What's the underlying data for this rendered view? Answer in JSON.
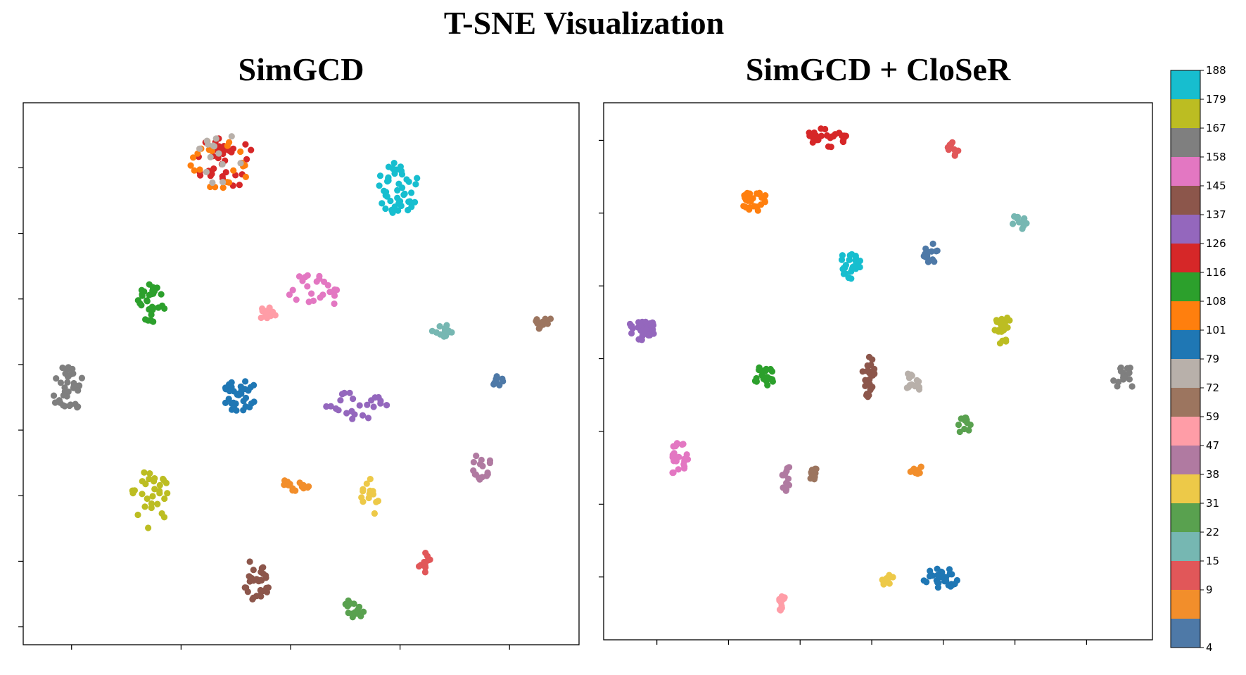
{
  "title": "T-SNE Visualization",
  "chart_data": [
    {
      "type": "scatter",
      "title": "SimGCD",
      "xlabel": "",
      "ylabel": "",
      "clusters": [
        {
          "class": 126,
          "color": "#d62728",
          "cx": 0.365,
          "cy": 0.11,
          "rx": 0.055,
          "ry": 0.05,
          "n": 34
        },
        {
          "class": 108,
          "color": "#ff7f0e",
          "cx": 0.355,
          "cy": 0.112,
          "rx": 0.055,
          "ry": 0.05,
          "n": 22
        },
        {
          "class": 79,
          "color": "#b8b0aa",
          "cx": 0.36,
          "cy": 0.11,
          "rx": 0.055,
          "ry": 0.05,
          "n": 14
        },
        {
          "class": 188,
          "color": "#17becf",
          "cx": 0.675,
          "cy": 0.158,
          "rx": 0.038,
          "ry": 0.048,
          "n": 46
        },
        {
          "class": 116,
          "color": "#2ca02c",
          "cx": 0.23,
          "cy": 0.37,
          "rx": 0.025,
          "ry": 0.036,
          "n": 30
        },
        {
          "class": 158,
          "color": "#e377c2",
          "cx": 0.52,
          "cy": 0.35,
          "rx": 0.05,
          "ry": 0.035,
          "n": 24
        },
        {
          "class": 59,
          "color": "#ff9da7",
          "cx": 0.44,
          "cy": 0.39,
          "rx": 0.015,
          "ry": 0.014,
          "n": 14
        },
        {
          "class": 22,
          "color": "#76b7b2",
          "cx": 0.755,
          "cy": 0.42,
          "rx": 0.02,
          "ry": 0.013,
          "n": 14
        },
        {
          "class": 72,
          "color": "#9c755f",
          "cx": 0.937,
          "cy": 0.405,
          "rx": 0.015,
          "ry": 0.015,
          "n": 12
        },
        {
          "class": 167,
          "color": "#7f7f7f",
          "cx": 0.08,
          "cy": 0.53,
          "rx": 0.03,
          "ry": 0.045,
          "n": 36
        },
        {
          "class": 101,
          "color": "#1f77b4",
          "cx": 0.39,
          "cy": 0.54,
          "rx": 0.032,
          "ry": 0.03,
          "n": 34
        },
        {
          "class": 137,
          "color": "#9467bd",
          "cx": 0.6,
          "cy": 0.56,
          "rx": 0.055,
          "ry": 0.03,
          "n": 24
        },
        {
          "class": 4,
          "color": "#4e79a7",
          "cx": 0.855,
          "cy": 0.515,
          "rx": 0.01,
          "ry": 0.011,
          "n": 8
        },
        {
          "class": 47,
          "color": "#b07aa1",
          "cx": 0.822,
          "cy": 0.673,
          "rx": 0.022,
          "ry": 0.025,
          "n": 16
        },
        {
          "class": 179,
          "color": "#bcbd22",
          "cx": 0.23,
          "cy": 0.73,
          "rx": 0.035,
          "ry": 0.06,
          "n": 30
        },
        {
          "class": 9,
          "color": "#f28e2b",
          "cx": 0.49,
          "cy": 0.705,
          "rx": 0.025,
          "ry": 0.014,
          "n": 16
        },
        {
          "class": 38,
          "color": "#edc948",
          "cx": 0.625,
          "cy": 0.73,
          "rx": 0.018,
          "ry": 0.038,
          "n": 14
        },
        {
          "class": 145,
          "color": "#8c564b",
          "cx": 0.42,
          "cy": 0.88,
          "rx": 0.027,
          "ry": 0.04,
          "n": 30
        },
        {
          "class": 15,
          "color": "#e15759",
          "cx": 0.722,
          "cy": 0.85,
          "rx": 0.012,
          "ry": 0.02,
          "n": 10
        },
        {
          "class": 31,
          "color": "#59a14f",
          "cx": 0.595,
          "cy": 0.935,
          "rx": 0.02,
          "ry": 0.02,
          "n": 16
        }
      ]
    },
    {
      "type": "scatter",
      "title": "SimGCD + CloSeR",
      "xlabel": "",
      "ylabel": "",
      "clusters": [
        {
          "class": 126,
          "color": "#d62728",
          "cx": 0.405,
          "cy": 0.065,
          "rx": 0.038,
          "ry": 0.018,
          "n": 28
        },
        {
          "class": 15,
          "color": "#e15759",
          "cx": 0.637,
          "cy": 0.085,
          "rx": 0.012,
          "ry": 0.014,
          "n": 10
        },
        {
          "class": 108,
          "color": "#ff7f0e",
          "cx": 0.275,
          "cy": 0.182,
          "rx": 0.025,
          "ry": 0.02,
          "n": 26
        },
        {
          "class": 22,
          "color": "#76b7b2",
          "cx": 0.757,
          "cy": 0.222,
          "rx": 0.015,
          "ry": 0.015,
          "n": 12
        },
        {
          "class": 188,
          "color": "#17becf",
          "cx": 0.45,
          "cy": 0.3,
          "rx": 0.018,
          "ry": 0.03,
          "n": 26
        },
        {
          "class": 4,
          "color": "#4e79a7",
          "cx": 0.595,
          "cy": 0.28,
          "rx": 0.015,
          "ry": 0.02,
          "n": 14
        },
        {
          "class": 137,
          "color": "#9467bd",
          "cx": 0.07,
          "cy": 0.42,
          "rx": 0.025,
          "ry": 0.022,
          "n": 34
        },
        {
          "class": 179,
          "color": "#bcbd22",
          "cx": 0.728,
          "cy": 0.425,
          "rx": 0.018,
          "ry": 0.028,
          "n": 20
        },
        {
          "class": 116,
          "color": "#2ca02c",
          "cx": 0.29,
          "cy": 0.51,
          "rx": 0.02,
          "ry": 0.026,
          "n": 24
        },
        {
          "class": 145,
          "color": "#8c564b",
          "cx": 0.483,
          "cy": 0.51,
          "rx": 0.012,
          "ry": 0.038,
          "n": 24
        },
        {
          "class": 79,
          "color": "#b8b0aa",
          "cx": 0.565,
          "cy": 0.52,
          "rx": 0.015,
          "ry": 0.022,
          "n": 14
        },
        {
          "class": 167,
          "color": "#7f7f7f",
          "cx": 0.948,
          "cy": 0.515,
          "rx": 0.025,
          "ry": 0.026,
          "n": 18
        },
        {
          "class": 31,
          "color": "#59a14f",
          "cx": 0.657,
          "cy": 0.6,
          "rx": 0.015,
          "ry": 0.016,
          "n": 12
        },
        {
          "class": 158,
          "color": "#e377c2",
          "cx": 0.137,
          "cy": 0.665,
          "rx": 0.018,
          "ry": 0.035,
          "n": 22
        },
        {
          "class": 47,
          "color": "#b07aa1",
          "cx": 0.335,
          "cy": 0.7,
          "rx": 0.012,
          "ry": 0.025,
          "n": 12
        },
        {
          "class": 72,
          "color": "#9c755f",
          "cx": 0.385,
          "cy": 0.69,
          "rx": 0.012,
          "ry": 0.014,
          "n": 10
        },
        {
          "class": 9,
          "color": "#f28e2b",
          "cx": 0.57,
          "cy": 0.68,
          "rx": 0.015,
          "ry": 0.012,
          "n": 10
        },
        {
          "class": 38,
          "color": "#edc948",
          "cx": 0.515,
          "cy": 0.885,
          "rx": 0.013,
          "ry": 0.014,
          "n": 10
        },
        {
          "class": 101,
          "color": "#1f77b4",
          "cx": 0.615,
          "cy": 0.885,
          "rx": 0.035,
          "ry": 0.018,
          "n": 30
        },
        {
          "class": 59,
          "color": "#ff9da7",
          "cx": 0.325,
          "cy": 0.935,
          "rx": 0.01,
          "ry": 0.016,
          "n": 10
        }
      ]
    }
  ],
  "colorbar": {
    "ticks": [
      {
        "label": "188",
        "color": "#17becf"
      },
      {
        "label": "179",
        "color": "#bcbd22"
      },
      {
        "label": "167",
        "color": "#7f7f7f"
      },
      {
        "label": "158",
        "color": "#e377c2"
      },
      {
        "label": "145",
        "color": "#8c564b"
      },
      {
        "label": "137",
        "color": "#9467bd"
      },
      {
        "label": "126",
        "color": "#d62728"
      },
      {
        "label": "116",
        "color": "#2ca02c"
      },
      {
        "label": "108",
        "color": "#ff7f0e"
      },
      {
        "label": "101",
        "color": "#1f77b4"
      },
      {
        "label": "79",
        "color": "#b8b0aa"
      },
      {
        "label": "72",
        "color": "#9c755f"
      },
      {
        "label": "59",
        "color": "#ff9da7"
      },
      {
        "label": "47",
        "color": "#b07aa1"
      },
      {
        "label": "38",
        "color": "#edc948"
      },
      {
        "label": "31",
        "color": "#59a14f"
      },
      {
        "label": "22",
        "color": "#76b7b2"
      },
      {
        "label": "15",
        "color": "#e15759"
      },
      {
        "label": "9",
        "color": "#f28e2b"
      },
      {
        "label": "4",
        "color": "#4e79a7"
      }
    ]
  }
}
